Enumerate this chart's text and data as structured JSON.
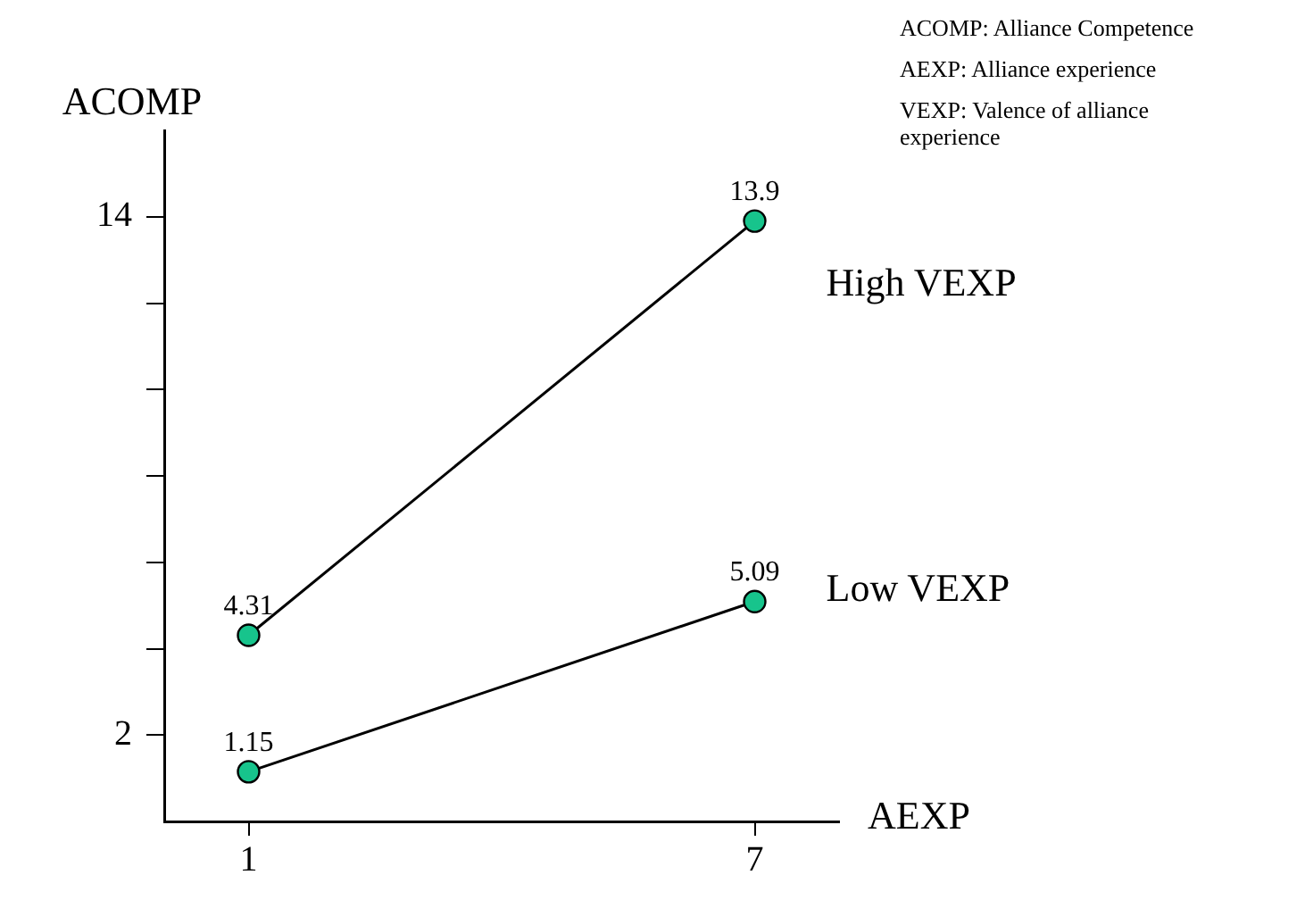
{
  "chart_data": {
    "type": "line",
    "xlabel": "AEXP",
    "ylabel": "ACOMP",
    "x": [
      1,
      7
    ],
    "series": [
      {
        "name": "High VEXP",
        "color": "#17c48c",
        "values": [
          4.31,
          13.9
        ]
      },
      {
        "name": "Low VEXP",
        "color": "#17c48c",
        "values": [
          1.15,
          5.09
        ]
      }
    ],
    "xlim": [
      0,
      8
    ],
    "xticks": [
      1,
      7
    ],
    "ylim": [
      0,
      16
    ],
    "yticks": [
      2,
      {
        "value": 4,
        "label": null
      },
      {
        "value": 6,
        "label": null
      },
      {
        "value": 8,
        "label": null
      },
      {
        "value": 10,
        "label": null
      },
      {
        "value": 12,
        "label": null
      },
      14
    ],
    "data_labels": true,
    "grid": false,
    "legend": false,
    "marker": "circle",
    "line_style": "solid",
    "annotations": [
      "ACOMP: Alliance Competence",
      "AEXP: Alliance experience",
      "VEXP: Valence of alliance experience"
    ]
  }
}
